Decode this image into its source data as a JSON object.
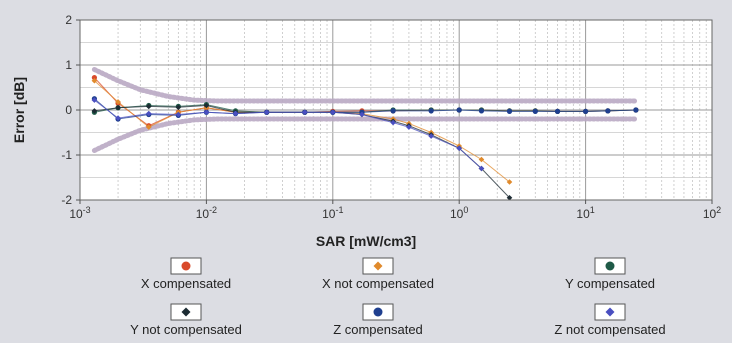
{
  "chart_data": {
    "type": "scatter",
    "title": "",
    "xlabel": "SAR [mW/cm3]",
    "ylabel": "Error [dB]",
    "x_scale": "log",
    "xlim": [
      0.001,
      100
    ],
    "ylim": [
      -2,
      2
    ],
    "x_ticks": [
      {
        "value": 0.001,
        "base": "10",
        "exp": "-3"
      },
      {
        "value": 0.01,
        "base": "10",
        "exp": "-2"
      },
      {
        "value": 0.1,
        "base": "10",
        "exp": "-1"
      },
      {
        "value": 1,
        "base": "10",
        "exp": "0"
      },
      {
        "value": 10,
        "base": "10",
        "exp": "1"
      },
      {
        "value": 100,
        "base": "10",
        "exp": "2"
      }
    ],
    "y_ticks": [
      {
        "value": 2,
        "label": "2"
      },
      {
        "value": 1,
        "label": "1"
      },
      {
        "value": 0,
        "label": "0"
      },
      {
        "value": -1,
        "label": "-1"
      },
      {
        "value": -2,
        "label": "-2"
      }
    ],
    "grid": true,
    "legend_position": "bottom",
    "uncertainty_band": {
      "x": [
        0.0013,
        0.002,
        0.003,
        0.005,
        0.008,
        0.012,
        0.02,
        0.05,
        0.1,
        1,
        10,
        25
      ],
      "upper": [
        0.9,
        0.65,
        0.45,
        0.3,
        0.22,
        0.2,
        0.2,
        0.2,
        0.2,
        0.2,
        0.2,
        0.2
      ],
      "lower": [
        -0.9,
        -0.65,
        -0.45,
        -0.3,
        -0.22,
        -0.2,
        -0.2,
        -0.2,
        -0.2,
        -0.2,
        -0.2,
        -0.2
      ],
      "color": "#b9a9c3"
    },
    "series": [
      {
        "name": "X compensated",
        "color": "#d94a2a",
        "marker": "circle",
        "x": [
          0.0013,
          0.002,
          0.0035,
          0.006,
          0.01,
          0.017,
          0.03,
          0.06,
          0.1,
          0.17,
          0.3,
          0.6,
          1,
          1.5,
          2.5,
          4,
          6,
          10,
          15,
          25
        ],
        "y": [
          0.72,
          0.15,
          -0.35,
          -0.05,
          0.05,
          -0.05,
          -0.05,
          -0.05,
          -0.03,
          -0.02,
          -0.02,
          0.0,
          0.0,
          0.0,
          -0.02,
          -0.02,
          -0.03,
          -0.03,
          -0.02,
          0.0
        ]
      },
      {
        "name": "X not compensated",
        "color": "#e08a2c",
        "marker": "diamond",
        "x": [
          0.0013,
          0.002,
          0.0035,
          0.006,
          0.01,
          0.017,
          0.03,
          0.06,
          0.1,
          0.17,
          0.3,
          0.4,
          0.6,
          1,
          1.5,
          2.5
        ],
        "y": [
          0.65,
          0.18,
          -0.38,
          -0.05,
          0.05,
          -0.05,
          -0.05,
          -0.05,
          -0.05,
          -0.08,
          -0.2,
          -0.3,
          -0.5,
          -0.8,
          -1.1,
          -1.6
        ]
      },
      {
        "name": "Y compensated",
        "color": "#1f5a47",
        "marker": "circle",
        "x": [
          0.0013,
          0.002,
          0.0035,
          0.006,
          0.01,
          0.017,
          0.03,
          0.06,
          0.1,
          0.17,
          0.3,
          0.6,
          1,
          1.5,
          2.5,
          4,
          6,
          10,
          15,
          25
        ],
        "y": [
          -0.05,
          0.05,
          0.1,
          0.08,
          0.12,
          -0.02,
          -0.05,
          -0.05,
          -0.05,
          -0.05,
          0.0,
          0.0,
          0.0,
          0.0,
          -0.02,
          -0.02,
          -0.03,
          -0.03,
          -0.02,
          0.0
        ]
      },
      {
        "name": "Y not compensated",
        "color": "#1c2b33",
        "marker": "diamond",
        "x": [
          0.0013,
          0.002,
          0.0035,
          0.006,
          0.01,
          0.017,
          0.03,
          0.06,
          0.1,
          0.17,
          0.3,
          0.4,
          0.6,
          1,
          1.5,
          2.5
        ],
        "y": [
          -0.02,
          0.05,
          0.08,
          0.06,
          0.1,
          -0.05,
          -0.05,
          -0.05,
          -0.05,
          -0.1,
          -0.25,
          -0.35,
          -0.55,
          -0.85,
          -1.3,
          -1.95
        ]
      },
      {
        "name": "Z compensated",
        "color": "#1f3f8f",
        "marker": "circle",
        "x": [
          0.0013,
          0.002,
          0.0035,
          0.006,
          0.01,
          0.017,
          0.03,
          0.06,
          0.1,
          0.17,
          0.3,
          0.6,
          1,
          1.5,
          2.5,
          4,
          6,
          10,
          15,
          25
        ],
        "y": [
          0.25,
          -0.2,
          -0.1,
          -0.12,
          -0.05,
          -0.08,
          -0.05,
          -0.05,
          -0.05,
          -0.05,
          -0.02,
          -0.02,
          0.0,
          -0.02,
          -0.03,
          -0.03,
          -0.03,
          -0.03,
          -0.02,
          0.0
        ]
      },
      {
        "name": "Z not compensated",
        "color": "#4a4fc0",
        "marker": "diamond",
        "x": [
          0.0013,
          0.002,
          0.0035,
          0.006,
          0.01,
          0.017,
          0.03,
          0.06,
          0.1,
          0.17,
          0.3,
          0.4,
          0.6,
          1,
          1.5
        ],
        "y": [
          0.22,
          -0.18,
          -0.08,
          -0.1,
          -0.05,
          -0.08,
          -0.05,
          -0.05,
          -0.05,
          -0.1,
          -0.28,
          -0.38,
          -0.58,
          -0.85,
          -1.3
        ]
      }
    ]
  }
}
